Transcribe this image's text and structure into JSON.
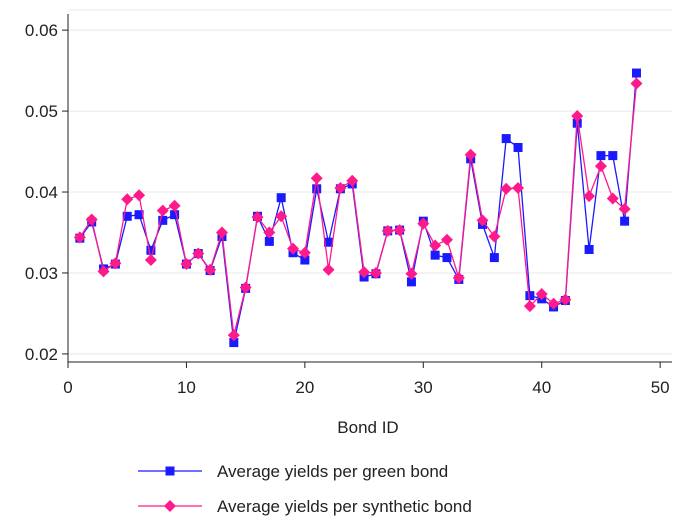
{
  "chart_data": {
    "type": "line",
    "title": "",
    "xlabel": "Bond ID",
    "ylabel": "",
    "xlim": [
      0,
      51
    ],
    "ylim": [
      0.019,
      0.0615
    ],
    "xticks": [
      0,
      10,
      20,
      30,
      40,
      50
    ],
    "yticks": [
      0.02,
      0.03,
      0.04,
      0.05,
      0.06
    ],
    "xtick_labels": [
      "0",
      "10",
      "20",
      "30",
      "40",
      "50"
    ],
    "ytick_labels": [
      "0.02",
      "0.03",
      "0.04",
      "0.05",
      "0.06"
    ],
    "grid": "horizontal",
    "legend_position": "bottom",
    "x": [
      1,
      2,
      3,
      4,
      5,
      6,
      7,
      8,
      9,
      10,
      11,
      12,
      13,
      14,
      15,
      16,
      17,
      18,
      19,
      20,
      21,
      22,
      23,
      24,
      25,
      26,
      27,
      28,
      29,
      30,
      31,
      32,
      33,
      34,
      35,
      36,
      37,
      38,
      39,
      40,
      41,
      42,
      43,
      44,
      45,
      46,
      47,
      48
    ],
    "series": [
      {
        "name": "Average yields per green bond",
        "color": "#1a1aff",
        "marker": "square",
        "values": [
          0.0343,
          0.0363,
          0.0305,
          0.0311,
          0.037,
          0.0372,
          0.0328,
          0.0365,
          0.0372,
          0.0311,
          0.0324,
          0.0303,
          0.0345,
          0.0214,
          0.0281,
          0.037,
          0.0339,
          0.0393,
          0.0325,
          0.0316,
          0.0404,
          0.0338,
          0.0404,
          0.041,
          0.0295,
          0.0299,
          0.0352,
          0.0353,
          0.0289,
          0.0364,
          0.0322,
          0.0319,
          0.0292,
          0.0441,
          0.036,
          0.0319,
          0.0466,
          0.0455,
          0.0272,
          0.0268,
          0.0258,
          0.0266,
          0.0485,
          0.0329,
          0.0445,
          0.0445,
          0.0364,
          0.0547
        ]
      },
      {
        "name": "Average yields per synthetic bond",
        "color": "#ff1a8c",
        "marker": "diamond",
        "values": [
          0.0344,
          0.0366,
          0.0302,
          0.0312,
          0.0391,
          0.0396,
          0.0316,
          0.0377,
          0.0383,
          0.0311,
          0.0324,
          0.0304,
          0.035,
          0.0223,
          0.0282,
          0.0369,
          0.035,
          0.037,
          0.033,
          0.0325,
          0.0417,
          0.0304,
          0.0405,
          0.0414,
          0.0301,
          0.03,
          0.0352,
          0.0353,
          0.0299,
          0.0361,
          0.0334,
          0.0341,
          0.0294,
          0.0446,
          0.0365,
          0.0345,
          0.0404,
          0.0405,
          0.0259,
          0.0274,
          0.0262,
          0.0267,
          0.0494,
          0.0395,
          0.0432,
          0.0392,
          0.0379,
          0.0534
        ]
      }
    ]
  }
}
